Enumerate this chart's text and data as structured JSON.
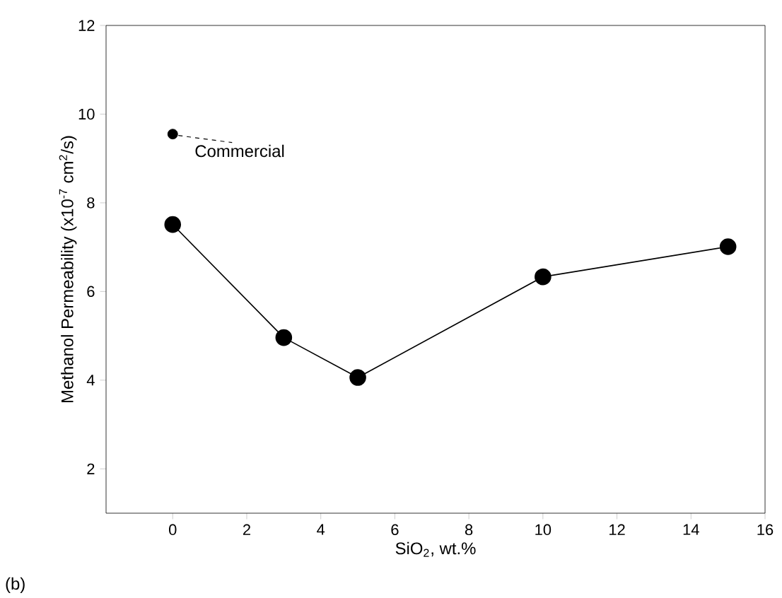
{
  "chart_data": {
    "type": "line",
    "xlabel": "SiO$_{2}$, wt.%",
    "ylabel": "Methanol Permeability (x10$^{-7}$ cm$^{2}$/s)",
    "xlim": [
      -1.8,
      16
    ],
    "ylim": [
      1,
      12
    ],
    "xticks": [
      0,
      2,
      4,
      6,
      8,
      10,
      12,
      14,
      16
    ],
    "yticks": [
      2,
      4,
      6,
      8,
      10,
      12
    ],
    "marker": "circle",
    "line_style": "solid",
    "grid": false,
    "series": [
      {
        "color": "#000000",
        "x": [
          0,
          3,
          5,
          10,
          15
        ],
        "values": [
          7.51,
          4.96,
          4.06,
          6.33,
          7.01
        ]
      },
      {
        "type": "scatter",
        "color": "#000000",
        "x": [
          0
        ],
        "values": [
          9.55
        ]
      }
    ],
    "annotations": [
      {
        "text": "Commercial",
        "x": 0,
        "y": 9.55
      },
      "(b)"
    ]
  }
}
